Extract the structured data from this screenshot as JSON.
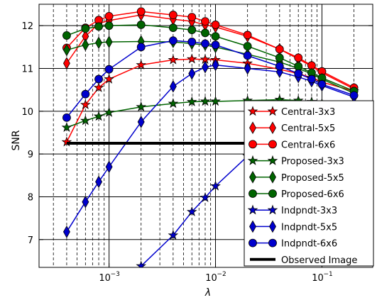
{
  "chart_data": {
    "type": "line",
    "xlabel": "λ",
    "ylabel": "SNR",
    "x_scale": "log",
    "xlim": [
      0.00022,
      0.3
    ],
    "ylim": [
      6.35,
      12.5
    ],
    "grid": true,
    "legend_position": "right",
    "x_ticks": [
      {
        "value": 0.001,
        "base": "10",
        "exp": "−3"
      },
      {
        "value": 0.01,
        "base": "10",
        "exp": "−2"
      },
      {
        "value": 0.1,
        "base": "10",
        "exp": "−1"
      }
    ],
    "y_ticks": [
      7,
      8,
      9,
      10,
      11,
      12
    ],
    "series": [
      {
        "name": "Central-3x3",
        "color": "#ff0000",
        "marker": "star",
        "points": [
          [
            0.0004,
            9.28
          ],
          [
            0.0006,
            10.15
          ],
          [
            0.0008,
            10.55
          ],
          [
            0.001,
            10.75
          ],
          [
            0.002,
            11.08
          ],
          [
            0.004,
            11.2
          ],
          [
            0.006,
            11.22
          ],
          [
            0.008,
            11.21
          ],
          [
            0.01,
            11.2
          ],
          [
            0.02,
            11.12
          ],
          [
            0.04,
            10.98
          ],
          [
            0.06,
            10.88
          ],
          [
            0.08,
            10.78
          ],
          [
            0.1,
            10.68
          ],
          [
            0.2,
            10.47
          ]
        ]
      },
      {
        "name": "Central-5x5",
        "color": "#ff0000",
        "marker": "diamond",
        "points": [
          [
            0.0004,
            11.12
          ],
          [
            0.0006,
            11.75
          ],
          [
            0.0008,
            12.05
          ],
          [
            0.001,
            12.12
          ],
          [
            0.002,
            12.25
          ],
          [
            0.004,
            12.15
          ],
          [
            0.006,
            12.1
          ],
          [
            0.008,
            12.02
          ],
          [
            0.01,
            11.97
          ],
          [
            0.02,
            11.75
          ],
          [
            0.04,
            11.45
          ],
          [
            0.06,
            11.22
          ],
          [
            0.08,
            11.05
          ],
          [
            0.1,
            10.9
          ],
          [
            0.2,
            10.52
          ]
        ]
      },
      {
        "name": "Central-6x6",
        "color": "#ff0000",
        "marker": "circle",
        "points": [
          [
            0.0004,
            11.48
          ],
          [
            0.0006,
            11.95
          ],
          [
            0.0008,
            12.13
          ],
          [
            0.001,
            12.22
          ],
          [
            0.002,
            12.33
          ],
          [
            0.004,
            12.25
          ],
          [
            0.006,
            12.2
          ],
          [
            0.008,
            12.1
          ],
          [
            0.01,
            12.02
          ],
          [
            0.02,
            11.78
          ],
          [
            0.04,
            11.45
          ],
          [
            0.06,
            11.25
          ],
          [
            0.08,
            11.07
          ],
          [
            0.1,
            10.93
          ],
          [
            0.2,
            10.55
          ]
        ]
      },
      {
        "name": "Proposed-3x3",
        "color": "#006400",
        "marker": "star",
        "points": [
          [
            0.0004,
            9.62
          ],
          [
            0.0006,
            9.78
          ],
          [
            0.0008,
            9.88
          ],
          [
            0.001,
            9.97
          ],
          [
            0.002,
            10.1
          ],
          [
            0.004,
            10.18
          ],
          [
            0.006,
            10.22
          ],
          [
            0.008,
            10.23
          ],
          [
            0.01,
            10.23
          ],
          [
            0.02,
            10.25
          ],
          [
            0.04,
            10.27
          ],
          [
            0.06,
            10.25
          ],
          [
            0.08,
            10.22
          ],
          [
            0.1,
            10.18
          ],
          [
            0.2,
            10.05
          ]
        ]
      },
      {
        "name": "Proposed-5x5",
        "color": "#006400",
        "marker": "diamond",
        "points": [
          [
            0.0004,
            11.43
          ],
          [
            0.0006,
            11.55
          ],
          [
            0.0008,
            11.6
          ],
          [
            0.001,
            11.62
          ],
          [
            0.002,
            11.63
          ],
          [
            0.004,
            11.62
          ],
          [
            0.006,
            11.58
          ],
          [
            0.008,
            11.55
          ],
          [
            0.01,
            11.5
          ],
          [
            0.02,
            11.33
          ],
          [
            0.04,
            11.15
          ],
          [
            0.06,
            11.0
          ],
          [
            0.08,
            10.87
          ],
          [
            0.1,
            10.75
          ],
          [
            0.2,
            10.42
          ]
        ]
      },
      {
        "name": "Proposed-6x6",
        "color": "#006400",
        "marker": "circle",
        "points": [
          [
            0.0004,
            11.77
          ],
          [
            0.0006,
            11.93
          ],
          [
            0.0008,
            11.98
          ],
          [
            0.001,
            12.0
          ],
          [
            0.002,
            12.02
          ],
          [
            0.004,
            11.95
          ],
          [
            0.006,
            11.9
          ],
          [
            0.008,
            11.83
          ],
          [
            0.01,
            11.75
          ],
          [
            0.02,
            11.52
          ],
          [
            0.04,
            11.25
          ],
          [
            0.06,
            11.05
          ],
          [
            0.08,
            10.9
          ],
          [
            0.1,
            10.78
          ],
          [
            0.2,
            10.47
          ]
        ]
      },
      {
        "name": "Indpndt-3x3",
        "color": "#0000cd",
        "marker": "star",
        "points": [
          [
            0.002,
            6.38
          ],
          [
            0.004,
            7.1
          ],
          [
            0.006,
            7.65
          ],
          [
            0.008,
            7.98
          ],
          [
            0.01,
            8.25
          ],
          [
            0.02,
            8.95
          ],
          [
            0.04,
            9.45
          ],
          [
            0.06,
            9.7
          ],
          [
            0.08,
            9.85
          ],
          [
            0.1,
            9.95
          ],
          [
            0.2,
            10.02
          ]
        ]
      },
      {
        "name": "Indpndt-5x5",
        "color": "#0000cd",
        "marker": "diamond",
        "points": [
          [
            0.0004,
            7.18
          ],
          [
            0.0006,
            7.88
          ],
          [
            0.0008,
            8.35
          ],
          [
            0.001,
            8.7
          ],
          [
            0.002,
            9.75
          ],
          [
            0.004,
            10.58
          ],
          [
            0.006,
            10.88
          ],
          [
            0.008,
            11.03
          ],
          [
            0.01,
            11.08
          ],
          [
            0.02,
            11.0
          ],
          [
            0.04,
            10.92
          ],
          [
            0.06,
            10.8
          ],
          [
            0.08,
            10.7
          ],
          [
            0.1,
            10.6
          ],
          [
            0.2,
            10.33
          ]
        ]
      },
      {
        "name": "Indpndt-6x6",
        "color": "#0000cd",
        "marker": "circle",
        "points": [
          [
            0.0004,
            9.85
          ],
          [
            0.0006,
            10.4
          ],
          [
            0.0008,
            10.75
          ],
          [
            0.001,
            10.98
          ],
          [
            0.002,
            11.5
          ],
          [
            0.004,
            11.65
          ],
          [
            0.006,
            11.62
          ],
          [
            0.008,
            11.58
          ],
          [
            0.01,
            11.55
          ],
          [
            0.02,
            11.3
          ],
          [
            0.04,
            11.05
          ],
          [
            0.06,
            10.88
          ],
          [
            0.08,
            10.75
          ],
          [
            0.1,
            10.63
          ],
          [
            0.2,
            10.37
          ]
        ]
      },
      {
        "name": "Observed Image",
        "color": "#000000",
        "marker": "none",
        "style": "thick",
        "points": [
          [
            0.0004,
            9.25
          ],
          [
            0.2,
            9.25
          ]
        ]
      }
    ]
  }
}
